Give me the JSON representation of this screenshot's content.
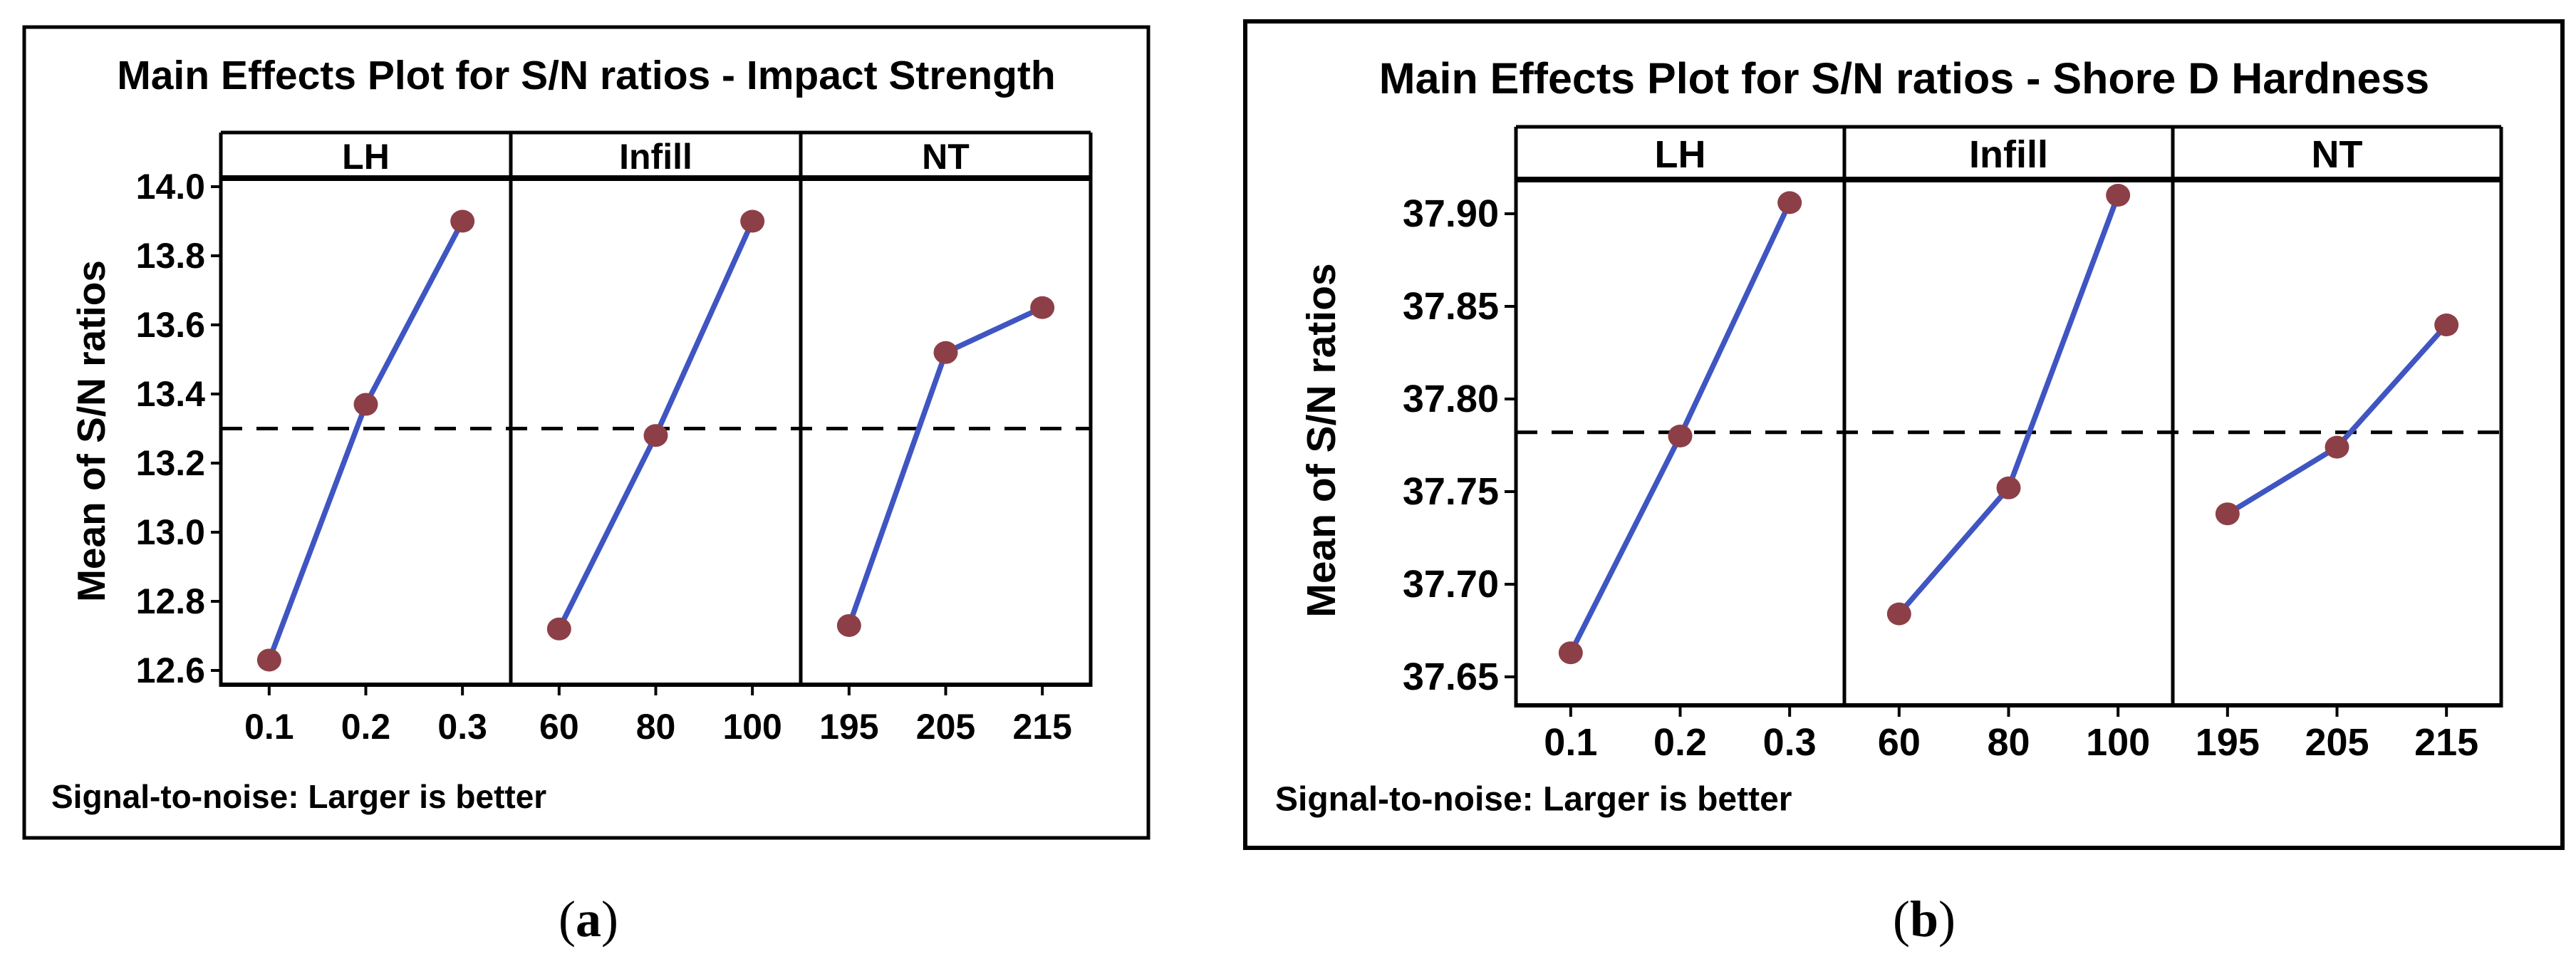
{
  "figure": {
    "caption_a": "a",
    "caption_b": "b",
    "background": "#ffffff"
  },
  "colors": {
    "line": "#3f55c2",
    "marker": "#8d3f47",
    "frame": "#000000",
    "dashed_line": "#000000",
    "text": "#000000"
  },
  "chart_data": [
    {
      "type": "line",
      "id": "a",
      "title": "Main Effects Plot for S/N ratios - Impact Strength",
      "ylabel": "Mean of S/N ratios",
      "footer": "Signal-to-noise: Larger is better",
      "legend_position": "none",
      "grid": false,
      "yticks": [
        "14.0",
        "13.8",
        "13.6",
        "13.4",
        "13.2",
        "13.0",
        "12.8",
        "12.6"
      ],
      "ylim": [
        12.5,
        14.05
      ],
      "dashed_mean": 13.3,
      "panels": [
        {
          "label": "LH",
          "categories": [
            "0.1",
            "0.2",
            "0.3"
          ],
          "values": [
            12.63,
            13.37,
            13.9
          ]
        },
        {
          "label": "Infill",
          "categories": [
            "60",
            "80",
            "100"
          ],
          "values": [
            12.72,
            13.28,
            13.9
          ]
        },
        {
          "label": "NT",
          "categories": [
            "195",
            "205",
            "215"
          ],
          "values": [
            12.73,
            13.52,
            13.65
          ]
        }
      ]
    },
    {
      "type": "line",
      "id": "b",
      "title": "Main Effects Plot for S/N ratios - Shore D Hardness",
      "ylabel": "Mean of S/N ratios",
      "footer": "Signal-to-noise: Larger is better",
      "legend_position": "none",
      "grid": false,
      "yticks": [
        "37.90",
        "37.85",
        "37.80",
        "37.75",
        "37.70",
        "37.65"
      ],
      "ylim": [
        37.63,
        37.93
      ],
      "dashed_mean": 37.782,
      "panels": [
        {
          "label": "LH",
          "categories": [
            "0.1",
            "0.2",
            "0.3"
          ],
          "values": [
            37.663,
            37.78,
            37.906
          ]
        },
        {
          "label": "Infill",
          "categories": [
            "60",
            "80",
            "100"
          ],
          "values": [
            37.684,
            37.752,
            37.91
          ]
        },
        {
          "label": "NT",
          "categories": [
            "195",
            "205",
            "215"
          ],
          "values": [
            37.738,
            37.774,
            37.84
          ]
        }
      ]
    }
  ]
}
